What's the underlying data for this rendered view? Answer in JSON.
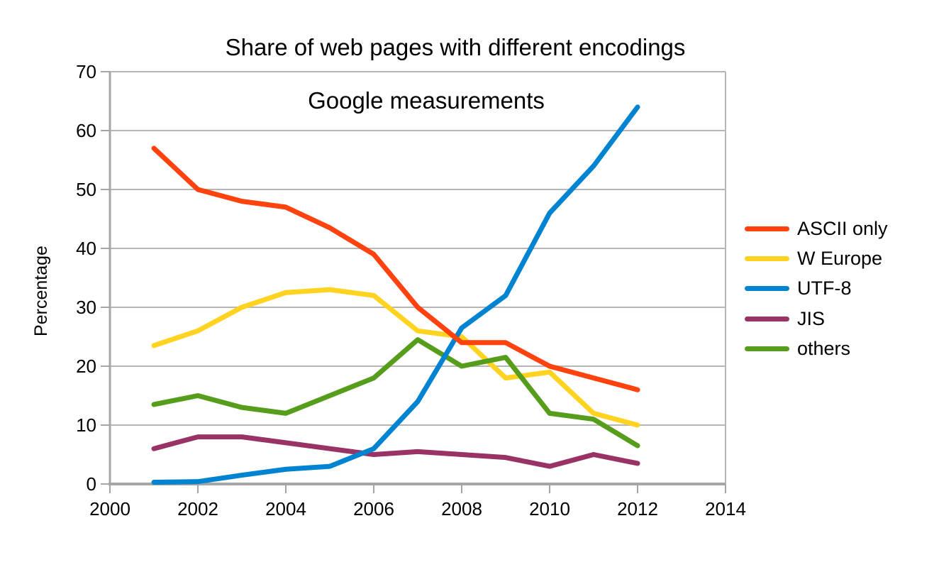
{
  "chart": {
    "title": "Share of web pages with different encodings",
    "subtitle": "Google measurements",
    "ylabel": "Percentage"
  },
  "chart_data": {
    "type": "line",
    "title": "Share of web pages with different encodings",
    "subtitle": "Google measurements",
    "xlabel": "",
    "ylabel": "Percentage",
    "x": [
      2001,
      2002,
      2003,
      2004,
      2005,
      2006,
      2007,
      2008,
      2009,
      2010,
      2011,
      2012
    ],
    "series": [
      {
        "name": "ASCII only",
        "color": "#FF420E",
        "values": [
          57,
          50,
          48,
          47,
          43.5,
          39,
          30,
          24,
          24,
          20,
          18,
          16
        ]
      },
      {
        "name": "W Europe",
        "color": "#FFD320",
        "values": [
          23.5,
          26,
          30,
          32.5,
          33,
          32,
          26,
          25,
          18,
          19,
          12,
          10
        ]
      },
      {
        "name": "UTF-8",
        "color": "#0084D1",
        "values": [
          0.3,
          0.4,
          1.5,
          2.5,
          3,
          6,
          14,
          26.5,
          32,
          46,
          54,
          64
        ]
      },
      {
        "name": "JIS",
        "color": "#993366",
        "values": [
          6,
          8,
          8,
          7,
          6,
          5,
          5.5,
          5,
          4.5,
          3,
          5,
          3.5
        ]
      },
      {
        "name": "others",
        "color": "#579D1C",
        "values": [
          13.5,
          15,
          13,
          12,
          15,
          18,
          24.5,
          20,
          21.5,
          12,
          11,
          6.5
        ]
      }
    ],
    "z_order": [
      "W Europe",
      "others",
      "JIS",
      "UTF-8",
      "ASCII only"
    ],
    "x_ticks": [
      2000,
      2002,
      2004,
      2006,
      2008,
      2010,
      2012,
      2014
    ],
    "y_ticks": [
      0,
      10,
      20,
      30,
      40,
      50,
      60,
      70
    ],
    "xlim": [
      2000,
      2014
    ],
    "ylim": [
      0,
      70
    ],
    "grid": "horizontal",
    "legend_position": "right",
    "line_width": 7,
    "grid_color": "#b6b6b6",
    "axis_color": "#a6a6a6",
    "text_color": "#000000"
  }
}
